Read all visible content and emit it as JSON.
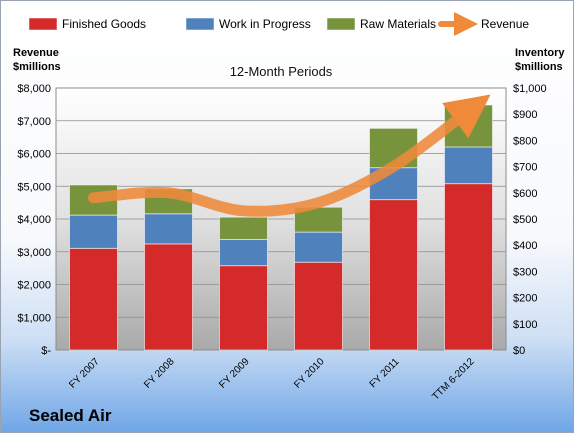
{
  "chart_data": {
    "type": "bar",
    "stacked": true,
    "title": "12-Month Periods",
    "categories": [
      "FY 2007",
      "FY 2008",
      "FY 2009",
      "FY 2010",
      "FY 2011",
      "TTM 6-2012"
    ],
    "left_axis": {
      "label_line1": "Revenue",
      "label_line2": "$millions",
      "range": [
        0,
        8000
      ],
      "ticks": [
        {
          "value": 0,
          "label": "$-"
        },
        {
          "value": 1000,
          "label": "$1,000"
        },
        {
          "value": 2000,
          "label": "$2,000"
        },
        {
          "value": 3000,
          "label": "$3,000"
        },
        {
          "value": 4000,
          "label": "$4,000"
        },
        {
          "value": 5000,
          "label": "$5,000"
        },
        {
          "value": 6000,
          "label": "$6,000"
        },
        {
          "value": 7000,
          "label": "$7,000"
        },
        {
          "value": 8000,
          "label": "$8,000"
        }
      ]
    },
    "right_axis": {
      "label_line1": "Inventory",
      "label_line2": "$millions",
      "range": [
        0,
        1000
      ],
      "ticks": [
        {
          "value": 0,
          "label": "$0"
        },
        {
          "value": 100,
          "label": "$100"
        },
        {
          "value": 200,
          "label": "$200"
        },
        {
          "value": 300,
          "label": "$300"
        },
        {
          "value": 400,
          "label": "$400"
        },
        {
          "value": 500,
          "label": "$500"
        },
        {
          "value": 600,
          "label": "$600"
        },
        {
          "value": 700,
          "label": "$700"
        },
        {
          "value": 800,
          "label": "$800"
        },
        {
          "value": 900,
          "label": "$900"
        },
        {
          "value": 1000,
          "label": "$1,000"
        }
      ]
    },
    "series": [
      {
        "name": "Finished Goods",
        "axis": "right",
        "color": "#d42a2a",
        "values": [
          388,
          405,
          322,
          335,
          574,
          635
        ]
      },
      {
        "name": "Work in Progress",
        "axis": "right",
        "color": "#4f81bd",
        "values": [
          127,
          115,
          100,
          115,
          122,
          140
        ]
      },
      {
        "name": "Raw Materials",
        "axis": "right",
        "color": "#77933c",
        "values": [
          115,
          95,
          85,
          95,
          150,
          160
        ]
      }
    ],
    "line_series": {
      "name": "Revenue",
      "axis": "left",
      "color": "#ee8a3a",
      "values": [
        4650,
        4800,
        4250,
        4500,
        5600,
        7300
      ]
    },
    "legend_position": "top",
    "grid": true
  },
  "footer": {
    "company": "Sealed Air"
  }
}
